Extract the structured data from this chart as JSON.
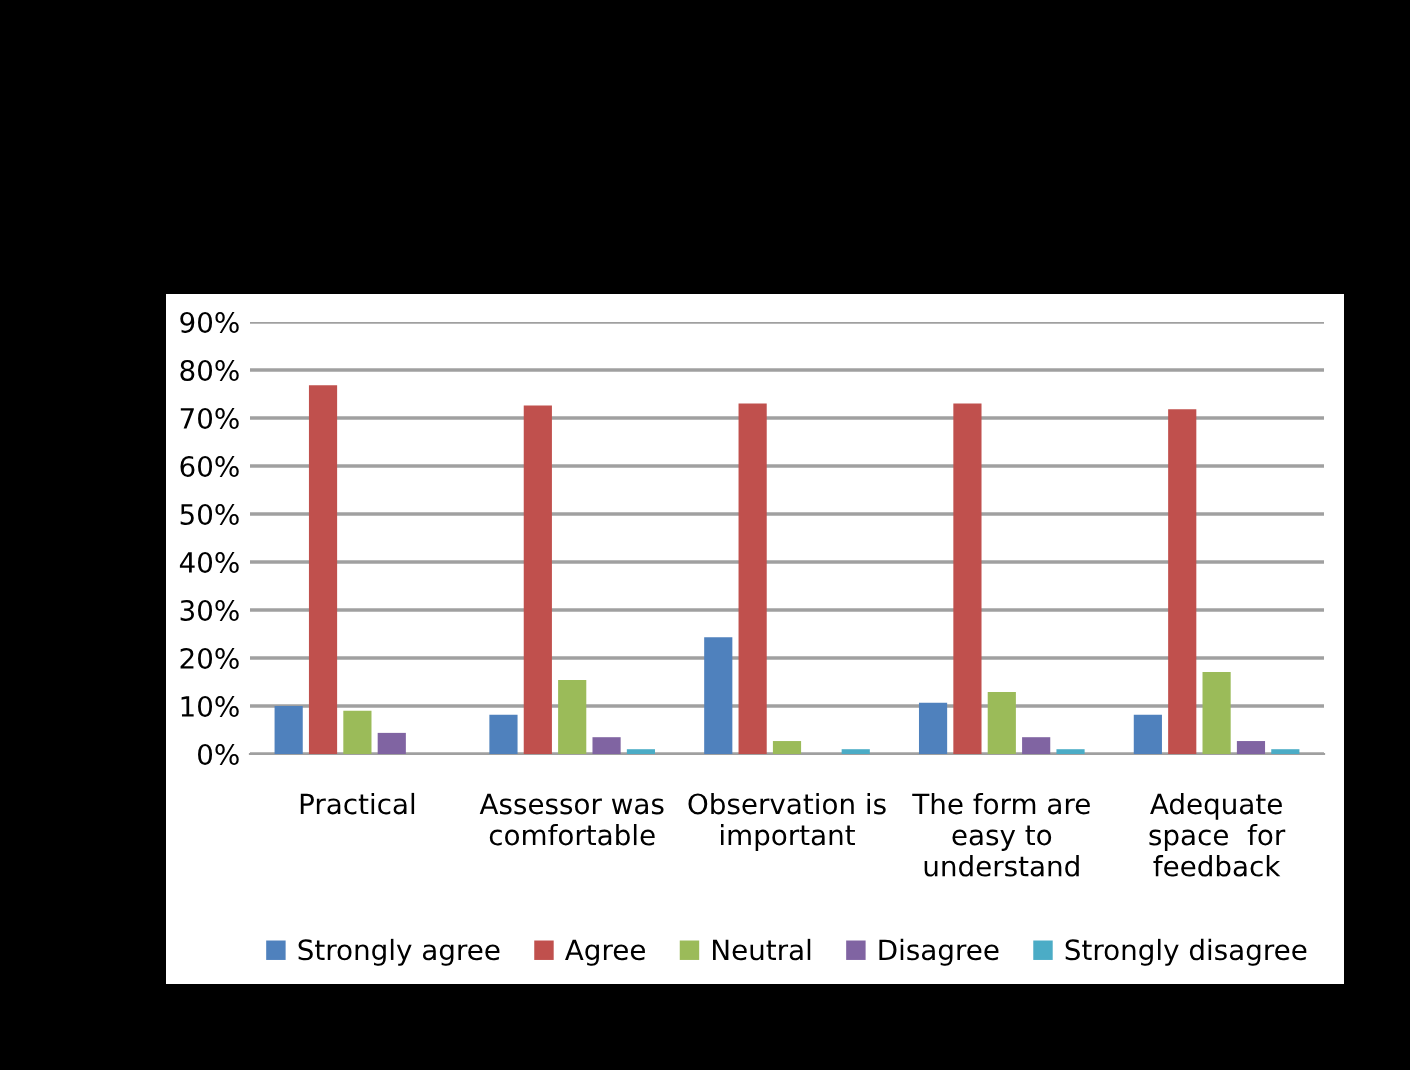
{
  "chart_data": {
    "type": "bar",
    "categories": [
      "Practical",
      "Assessor was\ncomfortable",
      "Observation is\nimportant",
      "The form are\neasy to\nunderstand",
      "Adequate\nspace  for\nfeedback"
    ],
    "series": [
      {
        "name": "Strongly agree",
        "color": "#4f81bd",
        "values": [
          10,
          8.2,
          24.3,
          10.7,
          8.2
        ]
      },
      {
        "name": "Agree",
        "color": "#c0504d",
        "values": [
          76.8,
          72.6,
          73.0,
          73.0,
          71.8
        ]
      },
      {
        "name": "Neutral",
        "color": "#9bbb59",
        "values": [
          9.0,
          15.4,
          2.7,
          12.9,
          17.1
        ]
      },
      {
        "name": "Disagree",
        "color": "#8064a2",
        "values": [
          4.4,
          3.5,
          0,
          3.5,
          2.7
        ]
      },
      {
        "name": "Strongly disagree",
        "color": "#4bacc6",
        "values": [
          0,
          1.0,
          1.0,
          1.0,
          1.0
        ]
      }
    ],
    "ylim": [
      0,
      90
    ],
    "yticks": [
      {
        "value": 0,
        "label": "0%"
      },
      {
        "value": 10,
        "label": "10%"
      },
      {
        "value": 20,
        "label": "20%"
      },
      {
        "value": 30,
        "label": "30%"
      },
      {
        "value": 40,
        "label": "40%"
      },
      {
        "value": 50,
        "label": "50%"
      },
      {
        "value": 60,
        "label": "60%"
      },
      {
        "value": 70,
        "label": "70%"
      },
      {
        "value": 80,
        "label": "80%"
      },
      {
        "value": 90,
        "label": "90%"
      }
    ],
    "grid": "y",
    "legend": "bottom"
  }
}
